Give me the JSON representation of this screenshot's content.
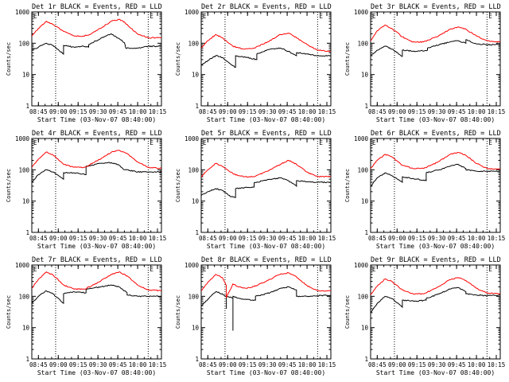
{
  "chart_data": [
    {
      "type": "line",
      "title": "Det 1r BLACK = Events, RED = LLD",
      "flags": [
        "E",
        "E"
      ],
      "xlabel": "Start Time (03-Nov-07 08:40:00)",
      "ylabel": "Counts/sec",
      "yscale": "log",
      "ylim": [
        1,
        1000
      ],
      "xlim": [
        "08:40",
        "10:18"
      ],
      "xticks": [
        "08:45",
        "09:00",
        "09:15",
        "09:30",
        "09:45",
        "10:00",
        "10:15"
      ],
      "yticks": [
        "1",
        "10",
        "100",
        "1000"
      ],
      "vlines": [
        "08:58",
        "10:08"
      ],
      "series": [
        {
          "color": "#000000",
          "x": [
            "08:40",
            "08:45",
            "08:51",
            "08:56",
            "09:04",
            "09:04",
            "09:12",
            "09:19",
            "09:23",
            "09:23",
            "09:33",
            "09:40",
            "09:46",
            "09:50",
            "09:51",
            "10:00",
            "10:08",
            "10:18"
          ],
          "y": [
            60,
            75,
            100,
            85,
            45,
            85,
            75,
            80,
            75,
            90,
            150,
            200,
            140,
            105,
            70,
            70,
            80,
            80
          ]
        },
        {
          "color": "#ff0000",
          "x": [
            "08:40",
            "08:45",
            "08:51",
            "08:56",
            "09:04",
            "09:12",
            "09:19",
            "09:25",
            "09:33",
            "09:40",
            "09:46",
            "09:50",
            "09:55",
            "10:00",
            "10:08",
            "10:18"
          ],
          "y": [
            170,
            300,
            500,
            400,
            240,
            170,
            170,
            200,
            320,
            500,
            580,
            480,
            300,
            200,
            150,
            150
          ]
        }
      ]
    },
    {
      "type": "line",
      "title": "Det 2r BLACK = Events, RED = LLD",
      "flags": [
        "E",
        "E"
      ],
      "xlabel": "Start Time (03-Nov-07 08:40:00)",
      "ylabel": "Counts/sec",
      "yscale": "log",
      "ylim": [
        1,
        1000
      ],
      "xlim": [
        "08:40",
        "10:18"
      ],
      "xticks": [
        "08:45",
        "09:00",
        "09:15",
        "09:30",
        "09:45",
        "10:00",
        "10:15"
      ],
      "yticks": [
        "1",
        "10",
        "100",
        "1000"
      ],
      "vlines": [
        "08:58",
        "10:08"
      ],
      "series": [
        {
          "color": "#000000",
          "x": [
            "08:40",
            "08:45",
            "08:51",
            "08:56",
            "09:02",
            "09:06",
            "09:06",
            "09:15",
            "09:22",
            "09:22",
            "09:32",
            "09:40",
            "09:46",
            "09:52",
            "09:52",
            "10:00",
            "10:08",
            "10:18"
          ],
          "y": [
            20,
            28,
            40,
            35,
            22,
            17,
            40,
            35,
            30,
            45,
            65,
            70,
            55,
            40,
            50,
            45,
            40,
            40
          ]
        },
        {
          "color": "#ff0000",
          "x": [
            "08:40",
            "08:45",
            "08:51",
            "08:56",
            "09:04",
            "09:12",
            "09:20",
            "09:30",
            "09:40",
            "09:46",
            "09:52",
            "10:00",
            "10:08",
            "10:18"
          ],
          "y": [
            70,
            120,
            190,
            150,
            80,
            65,
            70,
            110,
            190,
            210,
            150,
            90,
            60,
            55
          ]
        }
      ]
    },
    {
      "type": "line",
      "title": "Det 3r BLACK = Events, RED = LLD",
      "flags": [
        "E",
        "E"
      ],
      "xlabel": "Start Time (03-Nov-07 08:40:00)",
      "ylabel": "Counts/sec",
      "yscale": "log",
      "ylim": [
        1,
        1000
      ],
      "xlim": [
        "08:40",
        "10:18"
      ],
      "xticks": [
        "08:45",
        "09:00",
        "09:15",
        "09:30",
        "09:45",
        "10:00",
        "10:15"
      ],
      "yticks": [
        "1",
        "10",
        "100",
        "1000"
      ],
      "vlines": [
        "08:58",
        "10:08"
      ],
      "series": [
        {
          "color": "#000000",
          "x": [
            "08:40",
            "08:45",
            "08:51",
            "08:56",
            "09:04",
            "09:04",
            "09:15",
            "09:23",
            "09:23",
            "09:32",
            "09:40",
            "09:46",
            "09:52",
            "09:52",
            "10:00",
            "10:08",
            "10:18"
          ],
          "y": [
            40,
            60,
            80,
            65,
            38,
            60,
            55,
            60,
            70,
            90,
            110,
            120,
            100,
            130,
            95,
            90,
            90
          ]
        },
        {
          "color": "#ff0000",
          "x": [
            "08:40",
            "08:45",
            "08:51",
            "08:56",
            "09:04",
            "09:12",
            "09:20",
            "09:30",
            "09:40",
            "09:46",
            "09:52",
            "10:00",
            "10:08",
            "10:18"
          ],
          "y": [
            120,
            250,
            380,
            300,
            160,
            110,
            110,
            160,
            280,
            330,
            280,
            170,
            120,
            110
          ]
        }
      ]
    },
    {
      "type": "line",
      "title": "Det 4r BLACK = Events, RED = LLD",
      "flags": [
        "E",
        "E"
      ],
      "xlabel": "Start Time (03-Nov-07 08:40:00)",
      "ylabel": "Counts/sec",
      "yscale": "log",
      "ylim": [
        1,
        1000
      ],
      "xlim": [
        "08:40",
        "10:18"
      ],
      "xticks": [
        "08:45",
        "09:00",
        "09:15",
        "09:30",
        "09:45",
        "10:00",
        "10:15"
      ],
      "yticks": [
        "1",
        "10",
        "100",
        "1000"
      ],
      "vlines": [
        "08:58",
        "10:08"
      ],
      "series": [
        {
          "color": "#000000",
          "x": [
            "08:40",
            "08:45",
            "08:51",
            "08:56",
            "09:04",
            "09:04",
            "09:12",
            "09:21",
            "09:21",
            "09:32",
            "09:40",
            "09:46",
            "09:50",
            "09:52",
            "10:00",
            "10:08",
            "10:18"
          ],
          "y": [
            40,
            70,
            100,
            85,
            50,
            80,
            80,
            70,
            130,
            160,
            170,
            140,
            100,
            100,
            85,
            85,
            85
          ]
        },
        {
          "color": "#ff0000",
          "x": [
            "08:40",
            "08:45",
            "08:51",
            "08:56",
            "09:04",
            "09:12",
            "09:20",
            "09:30",
            "09:40",
            "09:46",
            "09:52",
            "10:00",
            "10:08",
            "10:18"
          ],
          "y": [
            120,
            220,
            370,
            300,
            150,
            120,
            120,
            200,
            360,
            420,
            330,
            180,
            120,
            110
          ]
        }
      ]
    },
    {
      "type": "line",
      "title": "Det 5r BLACK = Events, RED = LLD",
      "flags": [
        "E",
        "E"
      ],
      "xlabel": "Start Time (03-Nov-07 08:40:00)",
      "ylabel": "Counts/sec",
      "yscale": "log",
      "ylim": [
        1,
        1000
      ],
      "xlim": [
        "08:40",
        "10:18"
      ],
      "xticks": [
        "08:45",
        "09:00",
        "09:15",
        "09:30",
        "09:45",
        "10:00",
        "10:15"
      ],
      "yticks": [
        "1",
        "10",
        "100",
        "1000"
      ],
      "vlines": [
        "08:58",
        "10:08"
      ],
      "series": [
        {
          "color": "#000000",
          "x": [
            "08:40",
            "08:45",
            "08:51",
            "08:56",
            "09:02",
            "09:06",
            "09:06",
            "09:15",
            "09:20",
            "09:20",
            "09:32",
            "09:40",
            "09:46",
            "09:52",
            "09:52",
            "10:00",
            "10:08",
            "10:18"
          ],
          "y": [
            15,
            20,
            25,
            22,
            14,
            13,
            25,
            27,
            28,
            38,
            50,
            55,
            45,
            30,
            45,
            42,
            40,
            40
          ]
        },
        {
          "color": "#ff0000",
          "x": [
            "08:40",
            "08:45",
            "08:51",
            "08:56",
            "09:04",
            "09:12",
            "09:20",
            "09:30",
            "09:40",
            "09:46",
            "09:52",
            "10:00",
            "10:08",
            "10:18"
          ],
          "y": [
            60,
            100,
            160,
            130,
            75,
            60,
            60,
            90,
            150,
            200,
            150,
            85,
            60,
            60
          ]
        }
      ]
    },
    {
      "type": "line",
      "title": "Det 6r BLACK = Events, RED = LLD",
      "flags": [
        "E",
        "E"
      ],
      "xlabel": "Start Time (03-Nov-07 08:40:00)",
      "ylabel": "Counts/sec",
      "yscale": "log",
      "ylim": [
        1,
        1000
      ],
      "xlim": [
        "08:40",
        "10:18"
      ],
      "xticks": [
        "08:45",
        "09:00",
        "09:15",
        "09:30",
        "09:45",
        "10:00",
        "10:15"
      ],
      "yticks": [
        "1",
        "10",
        "100",
        "1000"
      ],
      "vlines": [
        "08:58",
        "10:08"
      ],
      "series": [
        {
          "color": "#000000",
          "x": [
            "08:40",
            "08:45",
            "08:51",
            "08:56",
            "09:04",
            "09:04",
            "09:15",
            "09:22",
            "09:22",
            "09:32",
            "09:40",
            "09:46",
            "09:52",
            "09:52",
            "10:00",
            "10:08",
            "10:18"
          ],
          "y": [
            30,
            55,
            80,
            65,
            40,
            60,
            50,
            45,
            80,
            100,
            130,
            150,
            110,
            100,
            90,
            90,
            90
          ]
        },
        {
          "color": "#ff0000",
          "x": [
            "08:40",
            "08:45",
            "08:51",
            "08:56",
            "09:04",
            "09:12",
            "09:20",
            "09:30",
            "09:40",
            "09:46",
            "09:52",
            "10:00",
            "10:08",
            "10:18"
          ],
          "y": [
            110,
            200,
            310,
            260,
            140,
            110,
            110,
            170,
            310,
            360,
            290,
            160,
            110,
            105
          ]
        }
      ]
    },
    {
      "type": "line",
      "title": "Det 7r BLACK = Events, RED = LLD",
      "flags": [
        "E",
        "E"
      ],
      "xlabel": "Start Time (03-Nov-07 08:40:00)",
      "ylabel": "Counts/sec",
      "yscale": "log",
      "ylim": [
        1,
        1000
      ],
      "xlim": [
        "08:40",
        "10:18"
      ],
      "xticks": [
        "08:45",
        "09:00",
        "09:15",
        "09:30",
        "09:45",
        "10:00",
        "10:15"
      ],
      "yticks": [
        "1",
        "10",
        "100",
        "1000"
      ],
      "vlines": [
        "08:58",
        "10:08"
      ],
      "series": [
        {
          "color": "#000000",
          "x": [
            "08:40",
            "08:45",
            "08:51",
            "08:56",
            "09:04",
            "09:04",
            "09:12",
            "09:21",
            "09:21",
            "09:32",
            "09:40",
            "09:46",
            "09:52",
            "09:52",
            "10:00",
            "10:08",
            "10:18"
          ],
          "y": [
            60,
            100,
            150,
            120,
            60,
            120,
            140,
            130,
            170,
            200,
            230,
            200,
            130,
            110,
            100,
            100,
            100
          ]
        },
        {
          "color": "#ff0000",
          "x": [
            "08:40",
            "08:45",
            "08:51",
            "08:56",
            "09:04",
            "09:12",
            "09:20",
            "09:30",
            "09:40",
            "09:46",
            "09:52",
            "10:00",
            "10:08",
            "10:18"
          ],
          "y": [
            180,
            350,
            600,
            480,
            230,
            170,
            170,
            280,
            500,
            600,
            450,
            230,
            160,
            150
          ]
        }
      ]
    },
    {
      "type": "line",
      "title": "Det 8r BLACK = Events, RED = LLD",
      "flags": [
        "E",
        "E"
      ],
      "xlabel": "Start Time (03-Nov-07 08:40:00)",
      "ylabel": "Counts/sec",
      "yscale": "log",
      "ylim": [
        1,
        1000
      ],
      "xlim": [
        "08:40",
        "10:18"
      ],
      "xticks": [
        "08:45",
        "09:00",
        "09:15",
        "09:30",
        "09:45",
        "10:00",
        "10:15"
      ],
      "yticks": [
        "1",
        "10",
        "100",
        "1000"
      ],
      "vlines": [
        "08:58",
        "10:08"
      ],
      "series": [
        {
          "color": "#000000",
          "x": [
            "08:40",
            "08:45",
            "08:51",
            "08:56",
            "08:59",
            "08:59",
            "08:59",
            "09:04",
            "09:04",
            "09:04",
            "09:12",
            "09:21",
            "09:21",
            "09:32",
            "09:40",
            "09:46",
            "09:52",
            "09:52",
            "10:00",
            "10:08",
            "10:18"
          ],
          "y": [
            50,
            80,
            140,
            120,
            100,
            40,
            100,
            90,
            8,
            100,
            80,
            75,
            100,
            130,
            180,
            200,
            160,
            100,
            100,
            105,
            110
          ]
        },
        {
          "color": "#ff0000",
          "x": [
            "08:40",
            "08:45",
            "08:51",
            "08:56",
            "08:59",
            "08:59",
            "09:03",
            "09:04",
            "09:08",
            "09:14",
            "09:22",
            "09:32",
            "09:40",
            "09:46",
            "09:52",
            "10:00",
            "10:08",
            "10:18"
          ],
          "y": [
            150,
            280,
            500,
            400,
            220,
            90,
            200,
            250,
            200,
            180,
            220,
            350,
            520,
            560,
            420,
            220,
            150,
            150
          ]
        }
      ]
    },
    {
      "type": "line",
      "title": "Det 9r BLACK = Events, RED = LLD",
      "flags": [
        "E",
        "E"
      ],
      "xlabel": "Start Time (03-Nov-07 08:40:00)",
      "ylabel": "Counts/sec",
      "yscale": "log",
      "ylim": [
        1,
        1000
      ],
      "xlim": [
        "08:40",
        "10:18"
      ],
      "xticks": [
        "08:45",
        "09:00",
        "09:15",
        "09:30",
        "09:45",
        "10:00",
        "10:15"
      ],
      "yticks": [
        "1",
        "10",
        "100",
        "1000"
      ],
      "vlines": [
        "08:58",
        "10:08"
      ],
      "series": [
        {
          "color": "#000000",
          "x": [
            "08:40",
            "08:45",
            "08:51",
            "08:56",
            "09:04",
            "09:04",
            "09:15",
            "09:22",
            "09:22",
            "09:32",
            "09:40",
            "09:46",
            "09:52",
            "09:52",
            "10:00",
            "10:08",
            "10:18"
          ],
          "y": [
            30,
            60,
            100,
            85,
            45,
            75,
            70,
            75,
            85,
            120,
            170,
            190,
            140,
            120,
            110,
            105,
            110
          ]
        },
        {
          "color": "#ff0000",
          "x": [
            "08:40",
            "08:45",
            "08:51",
            "08:56",
            "09:04",
            "09:12",
            "09:20",
            "09:30",
            "09:40",
            "09:46",
            "09:52",
            "10:00",
            "10:08",
            "10:18"
          ],
          "y": [
            110,
            210,
            360,
            300,
            160,
            120,
            120,
            190,
            340,
            400,
            320,
            180,
            130,
            120
          ]
        }
      ]
    }
  ]
}
